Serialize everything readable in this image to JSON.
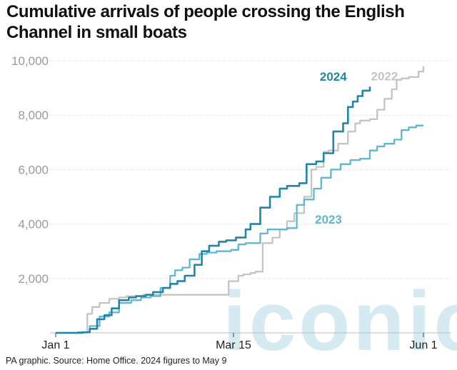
{
  "title": "Cumulative arrivals of people crossing the English Channel in small boats",
  "footer": "PA graphic. Source: Home Office. 2024 figures to May 9",
  "colors": {
    "2024": "#1f85ac",
    "2023": "#5fb6d1",
    "2022": "#c4c4c4",
    "grid": "#c8c8c8",
    "watermark": "#c9e3ee"
  },
  "watermark": "iconic",
  "chart_data": {
    "type": "line",
    "title": "Cumulative arrivals of people crossing the English Channel in small boats",
    "xlabel": "",
    "ylabel": "",
    "x_unit": "day of year",
    "x_ticks": [
      {
        "label": "Jan 1",
        "value": 1
      },
      {
        "label": "Mar 15",
        "value": 74
      },
      {
        "label": "Jun 1",
        "value": 152
      }
    ],
    "xlim": [
      1,
      152
    ],
    "ylim": [
      0,
      10000
    ],
    "y_ticks": [
      {
        "label": "2,000",
        "value": 2000
      },
      {
        "label": "4,000",
        "value": 4000
      },
      {
        "label": "6,000",
        "value": 6000
      },
      {
        "label": "8,000",
        "value": 8000
      },
      {
        "label": "10,000",
        "value": 10000
      }
    ],
    "grid": "horizontal dotted",
    "series": [
      {
        "name": "2022",
        "x": [
          1,
          10,
          14,
          16,
          19,
          23,
          27,
          30,
          33,
          37,
          40,
          44,
          48,
          52,
          55,
          58,
          62,
          66,
          70,
          72,
          76,
          78,
          81,
          83,
          86,
          90,
          93,
          96,
          99,
          103,
          106,
          108,
          111,
          113,
          117,
          121,
          124,
          126,
          130,
          133,
          136,
          139,
          141,
          143,
          146,
          148,
          150,
          152
        ],
        "y": [
          0,
          10,
          700,
          950,
          1100,
          1250,
          1300,
          1350,
          1350,
          1400,
          1400,
          1400,
          1400,
          1400,
          1400,
          1400,
          1400,
          1400,
          1400,
          1900,
          2100,
          2150,
          2200,
          2250,
          3300,
          3500,
          3800,
          4100,
          4400,
          5000,
          6000,
          6100,
          6650,
          6700,
          6950,
          7400,
          7700,
          7800,
          7850,
          8200,
          8600,
          8950,
          9300,
          9350,
          9400,
          9400,
          9600,
          9800
        ]
      },
      {
        "name": "2023",
        "x": [
          1,
          10,
          15,
          19,
          23,
          27,
          32,
          36,
          40,
          44,
          48,
          50,
          53,
          56,
          60,
          63,
          67,
          70,
          73,
          76,
          79,
          82,
          85,
          88,
          92,
          96,
          100,
          103,
          107,
          110,
          114,
          118,
          122,
          126,
          130,
          133,
          136,
          140,
          143,
          146,
          149,
          152
        ],
        "y": [
          0,
          20,
          250,
          600,
          750,
          1100,
          1200,
          1300,
          1350,
          1650,
          2100,
          2300,
          2400,
          2700,
          2900,
          2950,
          3000,
          3000,
          3050,
          3250,
          3300,
          3300,
          3650,
          3800,
          3800,
          3850,
          4700,
          4900,
          5300,
          5700,
          6000,
          6200,
          6350,
          6400,
          6700,
          6850,
          6950,
          7100,
          7450,
          7550,
          7620,
          7620
        ]
      },
      {
        "name": "2024",
        "x": [
          1,
          12,
          15,
          18,
          21,
          24,
          27,
          31,
          34,
          38,
          41,
          45,
          48,
          51,
          54,
          58,
          61,
          64,
          68,
          71,
          75,
          79,
          81,
          85,
          89,
          93,
          96,
          101,
          104,
          108,
          111,
          115,
          119,
          121,
          123,
          125,
          127,
          130
        ],
        "y": [
          0,
          20,
          150,
          500,
          650,
          900,
          1200,
          1300,
          1350,
          1400,
          1500,
          1650,
          1800,
          1900,
          2100,
          2500,
          3000,
          3200,
          3350,
          3400,
          3500,
          3800,
          4000,
          4600,
          5000,
          5300,
          5400,
          5500,
          6200,
          6300,
          6600,
          7400,
          7700,
          8300,
          8500,
          8700,
          8900,
          9050
        ]
      }
    ],
    "series_labels": [
      "2024",
      "2023",
      "2022"
    ]
  }
}
